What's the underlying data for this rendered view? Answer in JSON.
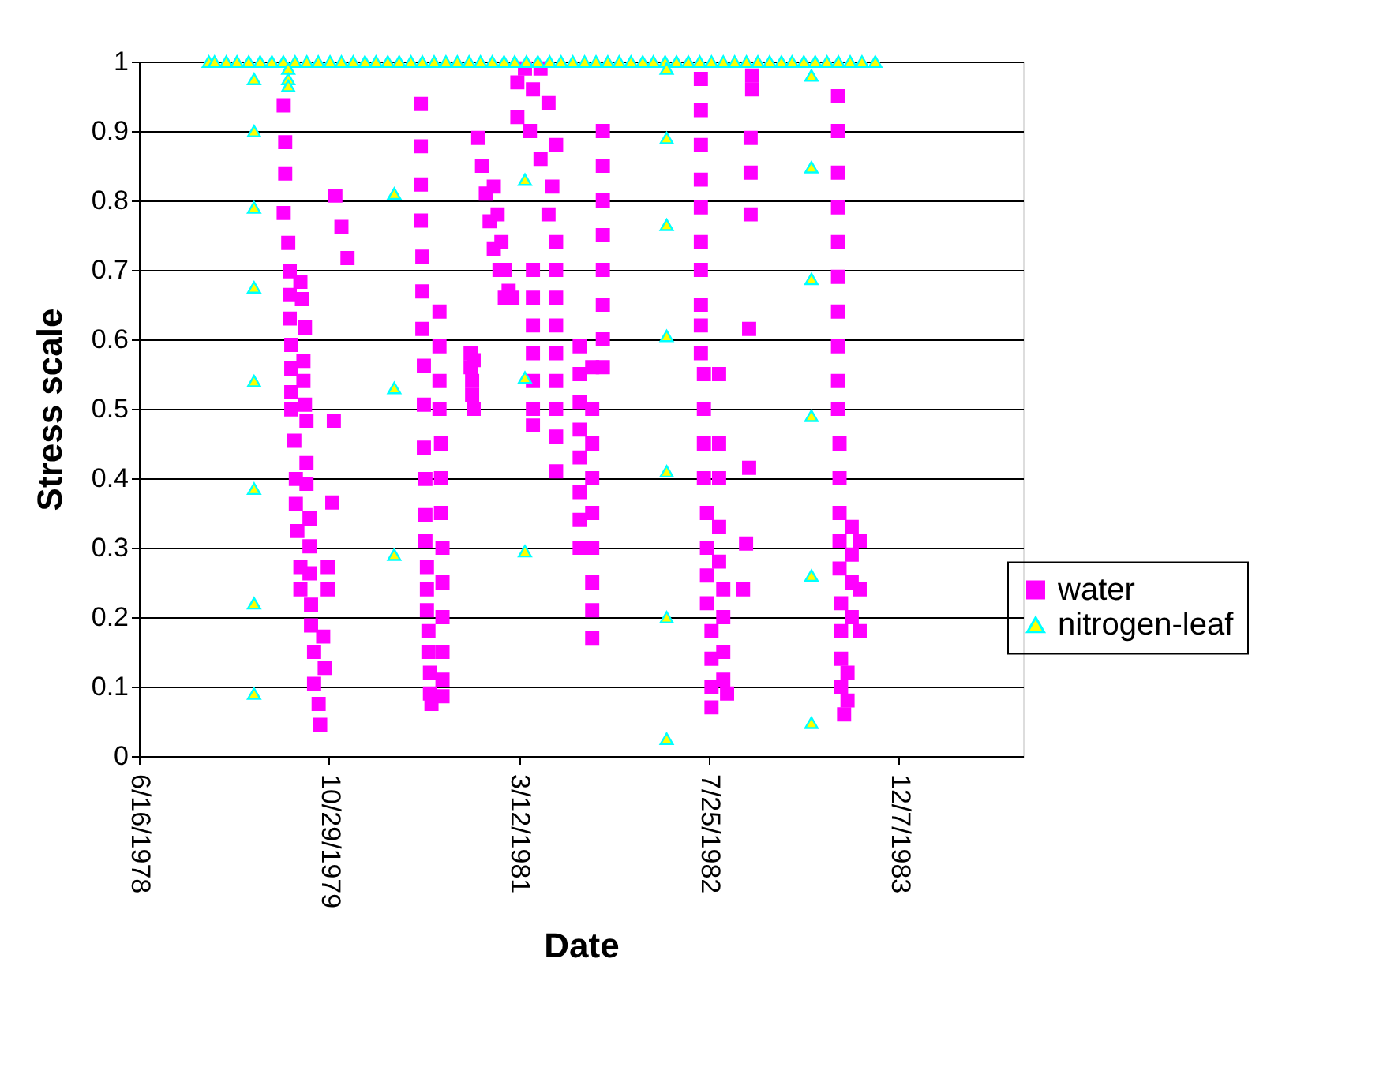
{
  "chart_data": {
    "type": "scatter",
    "xlabel": "Date",
    "ylabel": "Stress scale",
    "legend": "right",
    "grid": "y",
    "xlim": [
      "1978-06-16",
      "1984-10-29"
    ],
    "ylim": [
      0,
      1
    ],
    "xticks": [
      {
        "value": "1978-06-16",
        "label": "6/16/1978"
      },
      {
        "value": "1979-10-29",
        "label": "10/29/1979"
      },
      {
        "value": "1981-03-12",
        "label": "3/12/1981"
      },
      {
        "value": "1982-07-25",
        "label": "7/25/1982"
      },
      {
        "value": "1983-12-07",
        "label": "12/7/1983"
      }
    ],
    "yticks": [
      0,
      0.1,
      0.2,
      0.3,
      0.4,
      0.5,
      0.6,
      0.7,
      0.8,
      0.9,
      1
    ],
    "series": [
      {
        "name": "water",
        "color": "#ff00ff",
        "marker": "square",
        "x": [
          "1979-07-02",
          "1979-07-06",
          "1979-07-06",
          "1979-07-02",
          "1979-07-14",
          "1979-07-18",
          "1979-08-15",
          "1979-07-18",
          "1979-08-19",
          "1979-07-18",
          "1979-08-27",
          "1979-07-22",
          "1979-08-23",
          "1979-07-22",
          "1979-08-23",
          "1979-07-22",
          "1979-08-27",
          "1979-07-22",
          "1979-08-31",
          "1979-07-30",
          "1979-08-31",
          "1979-08-03",
          "1979-08-31",
          "1979-08-03",
          "1979-09-08",
          "1979-08-07",
          "1979-09-08",
          "1979-08-15",
          "1979-09-08",
          "1979-08-15",
          "1979-09-12",
          "1979-09-12",
          "1979-10-14",
          "1979-09-20",
          "1979-10-18",
          "1979-09-20",
          "1979-10-02",
          "1979-10-06",
          "1979-11-15",
          "1979-12-01",
          "1979-12-17",
          "1979-11-11",
          "1979-11-07",
          "1979-10-26",
          "1979-10-26",
          "1980-06-27",
          "1980-06-27",
          "1980-06-27",
          "1980-06-27",
          "1980-07-01",
          "1980-07-01",
          "1980-07-01",
          "1980-07-05",
          "1980-07-05",
          "1980-07-05",
          "1980-07-09",
          "1980-07-09",
          "1980-07-09",
          "1980-07-13",
          "1980-07-13",
          "1980-07-13",
          "1980-07-17",
          "1980-07-17",
          "1980-07-21",
          "1980-07-21",
          "1980-07-25",
          "1980-08-15",
          "1980-08-15",
          "1980-08-15",
          "1980-08-15",
          "1980-08-19",
          "1980-08-19",
          "1980-08-19",
          "1980-08-23",
          "1980-08-23",
          "1980-08-23",
          "1980-08-23",
          "1980-08-23",
          "1980-08-23",
          "1980-11-05",
          "1980-11-05",
          "1980-11-09",
          "1980-11-09",
          "1980-11-13",
          "1980-11-13",
          "1980-11-25",
          "1980-12-05",
          "1980-12-15",
          "1980-12-25",
          "1981-01-05",
          "1981-01-20",
          "1981-02-03",
          "1981-01-05",
          "1981-01-15",
          "1981-01-25",
          "1981-02-03",
          "1981-02-13",
          "1981-02-23",
          "1981-03-08",
          "1981-03-28",
          "1981-04-18",
          "1981-05-08",
          "1981-05-29",
          "1981-03-08",
          "1981-04-10",
          "1981-04-18",
          "1981-04-18",
          "1981-04-18",
          "1981-04-18",
          "1981-04-18",
          "1981-04-18",
          "1981-04-18",
          "1981-06-18",
          "1981-06-18",
          "1981-06-18",
          "1981-06-18",
          "1981-06-18",
          "1981-06-18",
          "1981-06-18",
          "1981-06-18",
          "1981-06-18",
          "1981-08-19",
          "1981-08-19",
          "1981-08-19",
          "1981-08-19",
          "1981-08-19",
          "1981-08-19",
          "1981-08-19",
          "1981-08-19",
          "1981-09-21",
          "1981-09-21",
          "1981-09-21",
          "1981-09-21",
          "1981-09-21",
          "1981-09-21",
          "1981-09-21",
          "1981-09-21",
          "1981-09-21",
          "1981-10-19",
          "1981-10-19",
          "1981-10-19",
          "1981-10-19",
          "1981-10-19",
          "1981-10-19",
          "1981-10-19",
          "1981-10-19",
          "1981-05-08",
          "1981-06-08",
          "1981-06-18",
          "1981-05-29",
          "1982-07-04",
          "1982-07-04",
          "1982-07-04",
          "1982-07-04",
          "1982-07-04",
          "1982-07-04",
          "1982-07-04",
          "1982-07-04",
          "1982-07-04",
          "1982-07-04",
          "1982-07-12",
          "1982-07-12",
          "1982-07-12",
          "1982-07-12",
          "1982-07-20",
          "1982-07-20",
          "1982-07-20",
          "1982-07-20",
          "1982-08-01",
          "1982-08-01",
          "1982-08-01",
          "1982-08-01",
          "1982-08-21",
          "1982-08-21",
          "1982-08-21",
          "1982-08-21",
          "1982-08-21",
          "1982-09-01",
          "1982-09-01",
          "1982-09-01",
          "1982-09-01",
          "1982-09-11",
          "1982-11-16",
          "1982-11-16",
          "1982-11-12",
          "1982-11-12",
          "1982-11-12",
          "1982-11-08",
          "1982-11-08",
          "1982-10-31",
          "1982-10-23",
          "1983-06-30",
          "1983-06-30",
          "1983-06-30",
          "1983-06-30",
          "1983-06-30",
          "1983-06-30",
          "1983-06-30",
          "1983-06-30",
          "1983-06-30",
          "1983-06-30",
          "1983-07-04",
          "1983-07-04",
          "1983-07-04",
          "1983-07-04",
          "1983-07-04",
          "1983-07-08",
          "1983-07-08",
          "1983-07-08",
          "1983-07-08",
          "1983-07-16",
          "1983-08-05",
          "1983-08-05",
          "1983-08-05",
          "1983-08-05",
          "1983-08-26",
          "1983-08-26",
          "1983-08-26",
          "1983-07-25",
          "1983-07-25"
        ],
        "values": [
          0.937,
          0.884,
          0.839,
          0.782,
          0.739,
          0.698,
          0.683,
          0.664,
          0.658,
          0.63,
          0.617,
          0.592,
          0.569,
          0.558,
          0.54,
          0.524,
          0.506,
          0.499,
          0.483,
          0.454,
          0.422,
          0.399,
          0.392,
          0.363,
          0.342,
          0.324,
          0.302,
          0.272,
          0.263,
          0.24,
          0.218,
          0.188,
          0.172,
          0.15,
          0.127,
          0.104,
          0.075,
          0.045,
          0.807,
          0.762,
          0.717,
          0.483,
          0.365,
          0.272,
          0.24,
          0.939,
          0.878,
          0.823,
          0.771,
          0.719,
          0.669,
          0.615,
          0.562,
          0.506,
          0.444,
          0.399,
          0.347,
          0.31,
          0.272,
          0.24,
          0.21,
          0.18,
          0.15,
          0.12,
          0.09,
          0.075,
          0.64,
          0.59,
          0.54,
          0.5,
          0.45,
          0.4,
          0.35,
          0.3,
          0.25,
          0.2,
          0.15,
          0.11,
          0.086,
          0.58,
          0.56,
          0.54,
          0.52,
          0.57,
          0.5,
          0.89,
          0.85,
          0.81,
          0.77,
          0.73,
          0.7,
          0.66,
          0.82,
          0.78,
          0.74,
          0.7,
          0.67,
          0.66,
          0.97,
          0.99,
          0.96,
          0.99,
          0.94,
          0.92,
          0.9,
          0.7,
          0.66,
          0.62,
          0.58,
          0.54,
          0.5,
          0.476,
          0.74,
          0.7,
          0.66,
          0.62,
          0.58,
          0.54,
          0.5,
          0.46,
          0.41,
          0.59,
          0.55,
          0.51,
          0.47,
          0.43,
          0.38,
          0.34,
          0.3,
          0.56,
          0.5,
          0.45,
          0.4,
          0.35,
          0.3,
          0.25,
          0.21,
          0.17,
          0.9,
          0.85,
          0.8,
          0.75,
          0.7,
          0.65,
          0.6,
          0.56,
          0.86,
          0.82,
          0.88,
          0.78,
          0.975,
          0.93,
          0.88,
          0.83,
          0.79,
          0.74,
          0.7,
          0.65,
          0.62,
          0.58,
          0.55,
          0.5,
          0.45,
          0.4,
          0.35,
          0.3,
          0.26,
          0.22,
          0.18,
          0.14,
          0.1,
          0.07,
          0.55,
          0.45,
          0.4,
          0.33,
          0.28,
          0.24,
          0.2,
          0.15,
          0.11,
          0.09,
          0.98,
          0.96,
          0.89,
          0.84,
          0.78,
          0.615,
          0.415,
          0.306,
          0.24,
          0.95,
          0.9,
          0.84,
          0.79,
          0.74,
          0.69,
          0.64,
          0.59,
          0.54,
          0.5,
          0.45,
          0.4,
          0.35,
          0.31,
          0.27,
          0.22,
          0.18,
          0.14,
          0.1,
          0.06,
          0.33,
          0.29,
          0.25,
          0.2,
          0.31,
          0.24,
          0.18,
          0.08,
          0.12
        ]
      },
      {
        "name": "nitrogen-leaf",
        "color": "#00ffff",
        "marker": "triangle",
        "x": [
          "1978-12-17",
          "1979-01-01",
          "1979-02-01",
          "1979-03-01",
          "1979-04-01",
          "1979-05-01",
          "1979-06-01",
          "1979-07-01",
          "1979-08-01",
          "1979-09-01",
          "1979-10-01",
          "1979-11-01",
          "1979-12-01",
          "1980-01-01",
          "1980-02-01",
          "1980-03-01",
          "1980-04-01",
          "1980-05-01",
          "1980-06-01",
          "1980-07-01",
          "1980-08-01",
          "1980-09-01",
          "1980-10-01",
          "1980-11-01",
          "1980-12-01",
          "1981-01-01",
          "1981-02-01",
          "1981-03-01",
          "1981-04-01",
          "1981-05-01",
          "1981-06-01",
          "1981-07-01",
          "1981-08-01",
          "1981-09-01",
          "1981-10-01",
          "1981-11-01",
          "1981-12-01",
          "1982-01-01",
          "1982-02-01",
          "1982-03-01",
          "1982-04-01",
          "1982-05-01",
          "1982-06-01",
          "1982-07-01",
          "1982-08-01",
          "1982-09-01",
          "1982-10-01",
          "1982-11-01",
          "1982-12-01",
          "1983-01-01",
          "1983-02-01",
          "1983-03-01",
          "1983-04-01",
          "1983-05-01",
          "1983-06-01",
          "1983-07-01",
          "1983-08-01",
          "1983-09-01",
          "1983-10-06",
          "1979-04-15",
          "1979-04-15",
          "1979-04-15",
          "1979-04-15",
          "1979-04-15",
          "1979-04-15",
          "1979-04-15",
          "1979-04-15",
          "1979-07-14",
          "1979-07-14",
          "1979-07-14",
          "1980-04-18",
          "1980-04-18",
          "1980-04-18",
          "1981-03-28",
          "1981-03-28",
          "1981-03-28",
          "1982-04-05",
          "1982-04-05",
          "1982-04-05",
          "1982-04-05",
          "1982-04-05",
          "1982-04-05",
          "1982-04-05",
          "1983-04-21",
          "1983-04-21",
          "1983-04-21",
          "1983-04-21",
          "1983-04-21",
          "1983-04-21"
        ],
        "values": [
          1,
          1,
          1,
          1,
          1,
          1,
          1,
          1,
          1,
          1,
          1,
          1,
          1,
          1,
          1,
          1,
          1,
          1,
          1,
          1,
          1,
          1,
          1,
          1,
          1,
          1,
          1,
          1,
          1,
          1,
          1,
          1,
          1,
          1,
          1,
          1,
          1,
          1,
          1,
          1,
          1,
          1,
          1,
          1,
          1,
          1,
          1,
          1,
          1,
          1,
          1,
          1,
          1,
          1,
          1,
          1,
          1,
          1,
          1,
          0.975,
          0.9,
          0.79,
          0.675,
          0.54,
          0.385,
          0.22,
          0.09,
          0.99,
          0.975,
          0.965,
          0.81,
          0.53,
          0.29,
          0.83,
          0.545,
          0.295,
          0.99,
          0.89,
          0.765,
          0.605,
          0.41,
          0.2,
          0.025,
          0.98,
          0.848,
          0.687,
          0.49,
          0.26,
          0.048
        ]
      }
    ]
  }
}
